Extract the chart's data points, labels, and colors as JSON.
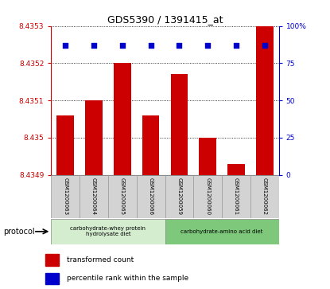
{
  "title": "GDS5390 / 1391415_at",
  "samples": [
    "GSM1200063",
    "GSM1200064",
    "GSM1200065",
    "GSM1200066",
    "GSM1200059",
    "GSM1200060",
    "GSM1200061",
    "GSM1200062"
  ],
  "bar_values": [
    8.43506,
    8.4351,
    8.4352,
    8.43506,
    8.43517,
    8.435,
    8.43493,
    8.4353
  ],
  "percentile_values": [
    87,
    87,
    87,
    87,
    87,
    87,
    87,
    87
  ],
  "bar_color": "#cc0000",
  "percentile_color": "#0000cc",
  "ylim_left": [
    8.4349,
    8.4353
  ],
  "ylim_right": [
    0,
    100
  ],
  "yticks_left": [
    8.4349,
    8.435,
    8.4351,
    8.4352,
    8.4353
  ],
  "yticks_right": [
    0,
    25,
    50,
    75,
    100
  ],
  "ytick_labels_left": [
    "8.4349",
    "8.435",
    "8.4351",
    "8.4352",
    "8.4353"
  ],
  "ytick_labels_right": [
    "0",
    "25",
    "50",
    "75",
    "100%"
  ],
  "group1_label": "carbohydrate-whey protein\nhydrolysate diet",
  "group2_label": "carbohydrate-amino acid diet",
  "group1_color": "#d4edcf",
  "group2_color": "#7dc87a",
  "protocol_label": "protocol",
  "legend_bar_label": "transformed count",
  "legend_pct_label": "percentile rank within the sample",
  "bar_width": 0.6,
  "left_axis_color": "#cc0000",
  "right_axis_color": "#0000cc",
  "bg_color_xticklabels": "#d3d3d3",
  "title_fontsize": 9
}
